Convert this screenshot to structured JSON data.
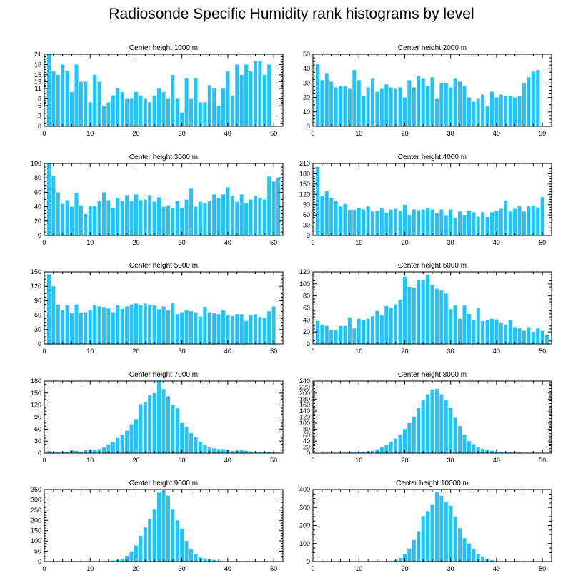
{
  "title": "Radiosonde Specific Humidity rank histograms by level",
  "bar_color": "#1ec3ff",
  "chart_data": [
    {
      "type": "bar",
      "title": "Center height 1000 m",
      "xlim": [
        0,
        52
      ],
      "xticks": [
        0,
        10,
        20,
        30,
        40,
        50
      ],
      "ylim": [
        0,
        21
      ],
      "yticks": [
        0,
        3,
        6,
        8,
        11,
        13,
        15,
        18,
        21
      ],
      "x": [
        1,
        2,
        3,
        4,
        5,
        6,
        7,
        8,
        9,
        10,
        11,
        12,
        13,
        14,
        15,
        16,
        17,
        18,
        19,
        20,
        21,
        22,
        23,
        24,
        25,
        26,
        27,
        28,
        29,
        30,
        31,
        32,
        33,
        34,
        35,
        36,
        37,
        38,
        39,
        40,
        41,
        42,
        43,
        44,
        45,
        46,
        47,
        48,
        49,
        50,
        51
      ],
      "values": [
        21,
        16,
        15,
        18,
        16,
        10,
        18,
        13,
        13,
        7,
        15,
        13,
        6,
        7,
        9,
        11,
        10,
        8,
        8,
        10,
        9,
        8,
        7,
        9,
        11,
        10,
        8,
        15,
        8,
        4,
        14,
        8,
        14,
        7,
        7,
        12,
        11,
        6,
        11,
        16,
        9,
        18,
        15,
        18,
        16,
        19,
        19,
        15,
        18,
        0,
        0
      ]
    },
    {
      "type": "bar",
      "title": "Center height 2000 m",
      "xlim": [
        0,
        52
      ],
      "xticks": [
        0,
        10,
        20,
        30,
        40,
        50
      ],
      "ylim": [
        0,
        50
      ],
      "yticks": [
        0,
        10,
        20,
        30,
        40,
        50
      ],
      "x": [
        1,
        2,
        3,
        4,
        5,
        6,
        7,
        8,
        9,
        10,
        11,
        12,
        13,
        14,
        15,
        16,
        17,
        18,
        19,
        20,
        21,
        22,
        23,
        24,
        25,
        26,
        27,
        28,
        29,
        30,
        31,
        32,
        33,
        34,
        35,
        36,
        37,
        38,
        39,
        40,
        41,
        42,
        43,
        44,
        45,
        46,
        47,
        48,
        49,
        50,
        51
      ],
      "values": [
        43,
        32,
        37,
        31,
        27,
        28,
        28,
        26,
        39,
        32,
        21,
        27,
        33,
        24,
        26,
        29,
        27,
        26,
        27,
        20,
        32,
        27,
        35,
        33,
        28,
        34,
        19,
        30,
        30,
        27,
        33,
        31,
        28,
        20,
        17,
        19,
        22,
        14,
        24,
        20,
        22,
        21,
        21,
        20,
        21,
        30,
        34,
        38,
        39,
        0,
        0
      ]
    },
    {
      "type": "bar",
      "title": "Center height 3000 m",
      "xlim": [
        0,
        52
      ],
      "xticks": [
        0,
        10,
        20,
        30,
        40,
        50
      ],
      "ylim": [
        0,
        100
      ],
      "yticks": [
        0,
        20,
        40,
        60,
        80,
        100
      ],
      "x": [
        1,
        2,
        3,
        4,
        5,
        6,
        7,
        8,
        9,
        10,
        11,
        12,
        13,
        14,
        15,
        16,
        17,
        18,
        19,
        20,
        21,
        22,
        23,
        24,
        25,
        26,
        27,
        28,
        29,
        30,
        31,
        32,
        33,
        34,
        35,
        36,
        37,
        38,
        39,
        40,
        41,
        42,
        43,
        44,
        45,
        46,
        47,
        48,
        49,
        50,
        51
      ],
      "values": [
        100,
        83,
        60,
        44,
        49,
        40,
        59,
        42,
        30,
        41,
        41,
        48,
        60,
        49,
        38,
        52,
        48,
        56,
        48,
        57,
        49,
        50,
        56,
        47,
        53,
        40,
        42,
        38,
        48,
        38,
        50,
        65,
        40,
        47,
        45,
        48,
        57,
        52,
        57,
        67,
        55,
        47,
        57,
        45,
        50,
        55,
        52,
        50,
        82,
        75,
        80
      ]
    },
    {
      "type": "bar",
      "title": "Center height 4000 m",
      "xlim": [
        0,
        52
      ],
      "xticks": [
        0,
        10,
        20,
        30,
        40,
        50
      ],
      "ylim": [
        0,
        210
      ],
      "yticks": [
        0,
        30,
        60,
        90,
        120,
        150,
        180,
        210
      ],
      "x": [
        1,
        2,
        3,
        4,
        5,
        6,
        7,
        8,
        9,
        10,
        11,
        12,
        13,
        14,
        15,
        16,
        17,
        18,
        19,
        20,
        21,
        22,
        23,
        24,
        25,
        26,
        27,
        28,
        29,
        30,
        31,
        32,
        33,
        34,
        35,
        36,
        37,
        38,
        39,
        40,
        41,
        42,
        43,
        44,
        45,
        46,
        47,
        48,
        49,
        50,
        51
      ],
      "values": [
        200,
        115,
        130,
        110,
        100,
        85,
        92,
        75,
        75,
        80,
        76,
        85,
        70,
        72,
        80,
        66,
        76,
        78,
        72,
        90,
        60,
        76,
        74,
        76,
        80,
        76,
        65,
        76,
        60,
        76,
        52,
        70,
        60,
        72,
        68,
        55,
        68,
        54,
        68,
        72,
        78,
        102,
        70,
        78,
        86,
        70,
        85,
        88,
        82,
        112,
        0
      ]
    },
    {
      "type": "bar",
      "title": "Center height 5000 m",
      "xlim": [
        0,
        52
      ],
      "xticks": [
        0,
        10,
        20,
        30,
        40,
        50
      ],
      "ylim": [
        0,
        150
      ],
      "yticks": [
        0,
        30,
        60,
        90,
        120,
        150
      ],
      "x": [
        1,
        2,
        3,
        4,
        5,
        6,
        7,
        8,
        9,
        10,
        11,
        12,
        13,
        14,
        15,
        16,
        17,
        18,
        19,
        20,
        21,
        22,
        23,
        24,
        25,
        26,
        27,
        28,
        29,
        30,
        31,
        32,
        33,
        34,
        35,
        36,
        37,
        38,
        39,
        40,
        41,
        42,
        43,
        44,
        45,
        46,
        47,
        48,
        49,
        50,
        51
      ],
      "values": [
        145,
        120,
        82,
        70,
        80,
        64,
        82,
        65,
        66,
        70,
        80,
        78,
        77,
        74,
        66,
        80,
        73,
        78,
        82,
        84,
        80,
        84,
        82,
        80,
        72,
        78,
        70,
        86,
        62,
        66,
        70,
        68,
        66,
        57,
        77,
        66,
        64,
        62,
        70,
        60,
        58,
        62,
        62,
        48,
        60,
        62,
        56,
        54,
        68,
        78,
        0
      ]
    },
    {
      "type": "bar",
      "title": "Center height 6000 m",
      "xlim": [
        0,
        52
      ],
      "xticks": [
        0,
        10,
        20,
        30,
        40,
        50
      ],
      "ylim": [
        0,
        120
      ],
      "yticks": [
        0,
        20,
        40,
        60,
        80,
        100,
        120
      ],
      "x": [
        1,
        2,
        3,
        4,
        5,
        6,
        7,
        8,
        9,
        10,
        11,
        12,
        13,
        14,
        15,
        16,
        17,
        18,
        19,
        20,
        21,
        22,
        23,
        24,
        25,
        26,
        27,
        28,
        29,
        30,
        31,
        32,
        33,
        34,
        35,
        36,
        37,
        38,
        39,
        40,
        41,
        42,
        43,
        44,
        45,
        46,
        47,
        48,
        49,
        50,
        51
      ],
      "values": [
        38,
        32,
        30,
        24,
        23,
        30,
        30,
        44,
        26,
        42,
        40,
        42,
        46,
        55,
        48,
        63,
        60,
        66,
        74,
        112,
        95,
        94,
        106,
        107,
        115,
        98,
        92,
        89,
        84,
        58,
        64,
        42,
        64,
        50,
        40,
        60,
        38,
        40,
        42,
        41,
        36,
        32,
        40,
        28,
        26,
        22,
        28,
        20,
        26,
        22,
        15
      ]
    },
    {
      "type": "bar",
      "title": "Center height 7000 m",
      "xlim": [
        0,
        52
      ],
      "xticks": [
        0,
        10,
        20,
        30,
        40,
        50
      ],
      "ylim": [
        0,
        180
      ],
      "yticks": [
        0,
        30,
        60,
        90,
        120,
        150,
        180
      ],
      "x": [
        1,
        2,
        3,
        4,
        5,
        6,
        7,
        8,
        9,
        10,
        11,
        12,
        13,
        14,
        15,
        16,
        17,
        18,
        19,
        20,
        21,
        22,
        23,
        24,
        25,
        26,
        27,
        28,
        29,
        30,
        31,
        32,
        33,
        34,
        35,
        36,
        37,
        38,
        39,
        40,
        41,
        42,
        43,
        44,
        45,
        46,
        47,
        48,
        49,
        50,
        51
      ],
      "values": [
        5,
        2,
        2,
        2,
        3,
        7,
        6,
        3,
        8,
        8,
        8,
        10,
        14,
        22,
        27,
        38,
        46,
        56,
        72,
        85,
        122,
        128,
        145,
        150,
        180,
        160,
        142,
        120,
        112,
        75,
        66,
        50,
        40,
        28,
        20,
        14,
        12,
        10,
        10,
        8,
        5,
        7,
        8,
        6,
        4,
        3,
        3,
        2,
        3,
        2,
        1
      ]
    },
    {
      "type": "bar",
      "title": "Center height 8000 m",
      "xlim": [
        0,
        52
      ],
      "xticks": [
        0,
        10,
        20,
        30,
        40,
        50
      ],
      "ylim": [
        0,
        240
      ],
      "yticks": [
        0,
        20,
        40,
        60,
        80,
        100,
        120,
        140,
        160,
        180,
        200,
        220,
        240
      ],
      "x": [
        1,
        2,
        3,
        4,
        5,
        6,
        7,
        8,
        9,
        10,
        11,
        12,
        13,
        14,
        15,
        16,
        17,
        18,
        19,
        20,
        21,
        22,
        23,
        24,
        25,
        26,
        27,
        28,
        29,
        30,
        31,
        32,
        33,
        34,
        35,
        36,
        37,
        38,
        39,
        40,
        41,
        42,
        43,
        44,
        45,
        46,
        47,
        48,
        49,
        50,
        51
      ],
      "values": [
        0,
        0,
        0,
        0,
        0,
        0,
        2,
        3,
        2,
        4,
        5,
        6,
        8,
        12,
        20,
        26,
        36,
        48,
        62,
        80,
        100,
        122,
        150,
        176,
        196,
        212,
        214,
        196,
        176,
        150,
        118,
        90,
        62,
        40,
        30,
        20,
        14,
        12,
        8,
        5,
        4,
        3,
        3,
        2,
        2,
        1,
        1,
        0,
        0,
        0,
        0
      ]
    },
    {
      "type": "bar",
      "title": "Center height 9000 m",
      "xlim": [
        0,
        52
      ],
      "xticks": [
        0,
        10,
        20,
        30,
        40,
        50
      ],
      "ylim": [
        0,
        350
      ],
      "yticks": [
        0,
        50,
        100,
        150,
        200,
        250,
        300,
        350
      ],
      "x": [
        1,
        2,
        3,
        4,
        5,
        6,
        7,
        8,
        9,
        10,
        11,
        12,
        13,
        14,
        15,
        16,
        17,
        18,
        19,
        20,
        21,
        22,
        23,
        24,
        25,
        26,
        27,
        28,
        29,
        30,
        31,
        32,
        33,
        34,
        35,
        36,
        37,
        38,
        39,
        40,
        41,
        42,
        43,
        44,
        45,
        46,
        47,
        48,
        49,
        50,
        51
      ],
      "values": [
        0,
        0,
        0,
        0,
        0,
        0,
        0,
        0,
        0,
        0,
        0,
        1,
        2,
        3,
        5,
        8,
        14,
        28,
        50,
        78,
        125,
        165,
        205,
        255,
        335,
        345,
        320,
        255,
        200,
        160,
        100,
        60,
        38,
        20,
        15,
        10,
        8,
        4,
        2,
        1,
        1,
        0,
        0,
        0,
        0,
        0,
        0,
        0,
        0,
        0,
        0
      ]
    },
    {
      "type": "bar",
      "title": "Center height 10000 m",
      "xlim": [
        0,
        52
      ],
      "xticks": [
        0,
        10,
        20,
        30,
        40,
        50
      ],
      "ylim": [
        0,
        400
      ],
      "yticks": [
        0,
        100,
        200,
        300,
        400
      ],
      "x": [
        1,
        2,
        3,
        4,
        5,
        6,
        7,
        8,
        9,
        10,
        11,
        12,
        13,
        14,
        15,
        16,
        17,
        18,
        19,
        20,
        21,
        22,
        23,
        24,
        25,
        26,
        27,
        28,
        29,
        30,
        31,
        32,
        33,
        34,
        35,
        36,
        37,
        38,
        39,
        40,
        41,
        42,
        43,
        44,
        45,
        46,
        47,
        48,
        49,
        50,
        51
      ],
      "values": [
        0,
        0,
        0,
        0,
        0,
        0,
        0,
        0,
        0,
        0,
        0,
        0,
        0,
        0,
        0,
        1,
        3,
        8,
        20,
        42,
        72,
        120,
        168,
        252,
        280,
        318,
        386,
        365,
        332,
        310,
        250,
        185,
        130,
        100,
        70,
        40,
        28,
        14,
        8,
        3,
        2,
        1,
        0,
        0,
        0,
        0,
        0,
        0,
        0,
        0,
        0
      ]
    }
  ]
}
